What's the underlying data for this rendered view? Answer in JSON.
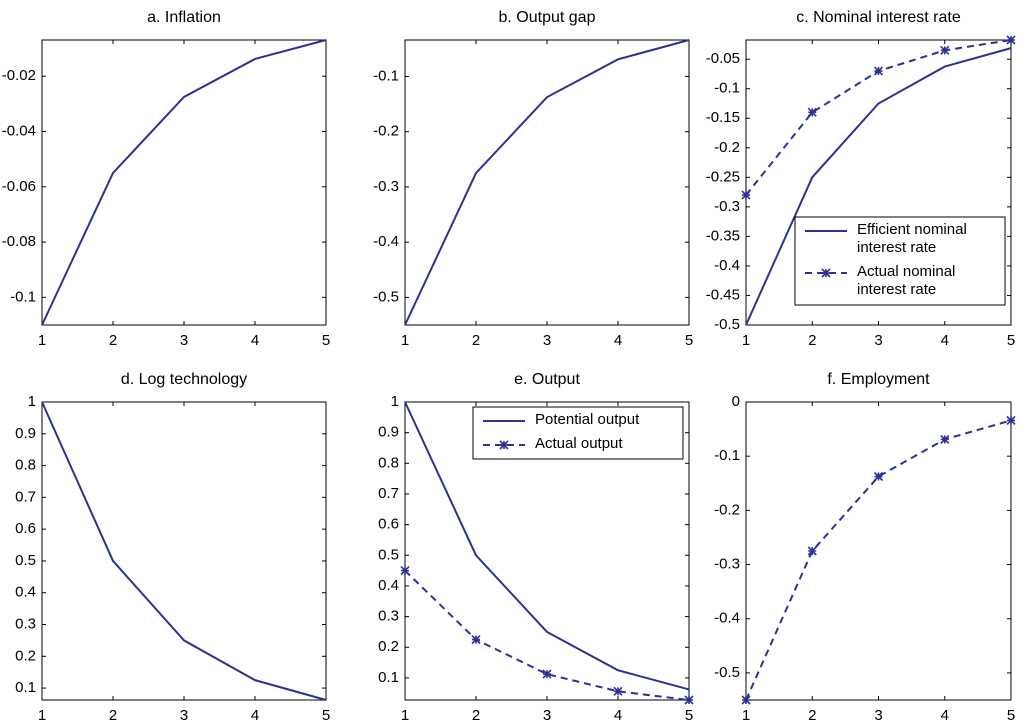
{
  "chart_data": [
    {
      "type": "line",
      "title": "a. Inflation",
      "x": [
        1,
        2,
        3,
        4,
        5
      ],
      "xlim": [
        1,
        5
      ],
      "xticks": [
        1,
        2,
        3,
        4,
        5
      ],
      "ylim": [
        -0.11,
        -0.0069
      ],
      "yticks": [
        -0.1,
        -0.08,
        -0.06,
        -0.04,
        -0.02
      ],
      "series": [
        {
          "color": "#2e3192",
          "style": "solid",
          "values": [
            -0.11,
            -0.055,
            -0.0275,
            -0.01375,
            -0.0069
          ]
        }
      ]
    },
    {
      "type": "line",
      "title": "b. Output gap",
      "x": [
        1,
        2,
        3,
        4,
        5
      ],
      "xlim": [
        1,
        5
      ],
      "xticks": [
        1,
        2,
        3,
        4,
        5
      ],
      "ylim": [
        -0.55,
        -0.034
      ],
      "yticks": [
        -0.5,
        -0.4,
        -0.3,
        -0.2,
        -0.1
      ],
      "series": [
        {
          "color": "#2e3192",
          "style": "solid",
          "values": [
            -0.55,
            -0.275,
            -0.1375,
            -0.069,
            -0.034
          ]
        }
      ]
    },
    {
      "type": "line",
      "title": "c. Nominal interest rate",
      "x": [
        1,
        2,
        3,
        4,
        5
      ],
      "xlim": [
        1,
        5
      ],
      "xticks": [
        1,
        2,
        3,
        4,
        5
      ],
      "ylim": [
        -0.5,
        -0.0175
      ],
      "yticks": [
        -0.5,
        -0.45,
        -0.4,
        -0.35,
        -0.3,
        -0.25,
        -0.2,
        -0.15,
        -0.1,
        -0.05
      ],
      "legend": "lower right",
      "series": [
        {
          "name": "Efficient nominal interest rate",
          "color": "#2e3192",
          "style": "solid",
          "values": [
            -0.5,
            -0.25,
            -0.125,
            -0.0625,
            -0.03125
          ]
        },
        {
          "name": "Actual nominal interest rate",
          "color": "#2e3192",
          "style": "dashed",
          "marker": "x",
          "values": [
            -0.28,
            -0.14,
            -0.07,
            -0.035,
            -0.0175
          ]
        }
      ]
    },
    {
      "type": "line",
      "title": "d. Log technology",
      "x": [
        1,
        2,
        3,
        4,
        5
      ],
      "xlim": [
        1,
        5
      ],
      "xticks": [
        1,
        2,
        3,
        4,
        5
      ],
      "ylim": [
        0.0625,
        1
      ],
      "yticks": [
        0.1,
        0.2,
        0.3,
        0.4,
        0.5,
        0.6,
        0.7,
        0.8,
        0.9,
        1
      ],
      "series": [
        {
          "color": "#2e3192",
          "style": "solid",
          "values": [
            1,
            0.5,
            0.25,
            0.125,
            0.0625
          ]
        }
      ]
    },
    {
      "type": "line",
      "title": "e. Output",
      "x": [
        1,
        2,
        3,
        4,
        5
      ],
      "xlim": [
        1,
        5
      ],
      "xticks": [
        1,
        2,
        3,
        4,
        5
      ],
      "ylim": [
        0.028,
        1
      ],
      "yticks": [
        0.1,
        0.2,
        0.3,
        0.4,
        0.5,
        0.6,
        0.7,
        0.8,
        0.9,
        1
      ],
      "legend": "upper right",
      "series": [
        {
          "name": "Potential output",
          "color": "#2e3192",
          "style": "solid",
          "values": [
            1,
            0.5,
            0.25,
            0.125,
            0.0625
          ]
        },
        {
          "name": "Actual output",
          "color": "#2e3192",
          "style": "dashed",
          "marker": "x",
          "values": [
            0.45,
            0.225,
            0.1125,
            0.05625,
            0.028
          ]
        }
      ]
    },
    {
      "type": "line",
      "title": "f. Employment",
      "x": [
        1,
        2,
        3,
        4,
        5
      ],
      "xlim": [
        1,
        5
      ],
      "xticks": [
        1,
        2,
        3,
        4,
        5
      ],
      "ylim": [
        -0.55,
        0
      ],
      "yticks": [
        -0.5,
        -0.4,
        -0.3,
        -0.2,
        -0.1,
        0
      ],
      "series": [
        {
          "color": "#2e3192",
          "style": "dashed",
          "marker": "x",
          "values": [
            -0.55,
            -0.275,
            -0.1375,
            -0.069,
            -0.034
          ]
        }
      ]
    }
  ]
}
